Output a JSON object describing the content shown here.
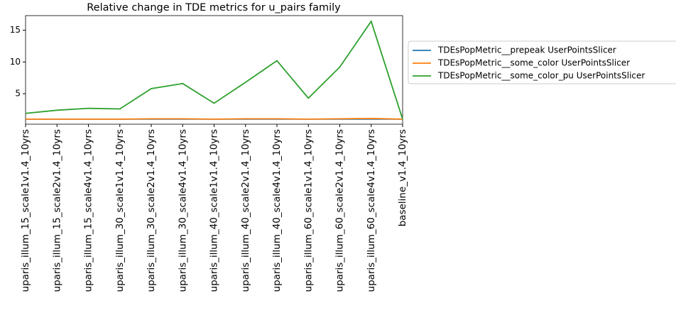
{
  "chart_data": {
    "type": "line",
    "title": "Relative change in TDE metrics for u_pairs family",
    "categories": [
      "uparis_illum_15_scale1v1.4_10yrs",
      "uparis_illum_15_scale2v1.4_10yrs",
      "uparis_illum_15_scale4v1.4_10yrs",
      "uparis_illum_30_scale1v1.4_10yrs",
      "uparis_illum_30_scale2v1.4_10yrs",
      "uparis_illum_30_scale4v1.4_10yrs",
      "uparis_illum_40_scale1v1.4_10yrs",
      "uparis_illum_40_scale2v1.4_10yrs",
      "uparis_illum_40_scale4v1.4_10yrs",
      "uparis_illum_60_scale1v1.4_10yrs",
      "uparis_illum_60_scale2v1.4_10yrs",
      "uparis_illum_60_scale4v1.4_10yrs",
      "baseline_v1.4_10yrs"
    ],
    "series": [
      {
        "name": "TDEsPopMetric__prepeak  UserPointsSlicer",
        "color": "#1f77b4",
        "values": [
          1.0,
          1.0,
          1.0,
          1.0,
          1.0,
          1.0,
          1.0,
          1.0,
          1.0,
          1.0,
          1.0,
          1.0,
          1.0
        ]
      },
      {
        "name": "TDEsPopMetric__some_color  UserPointsSlicer",
        "color": "#ff7f0e",
        "values": [
          1.0,
          1.0,
          1.0,
          1.0,
          1.05,
          1.05,
          1.0,
          1.05,
          1.05,
          1.0,
          1.05,
          1.1,
          1.0
        ]
      },
      {
        "name": "TDEsPopMetric__some_color_pu  UserPointsSlicer",
        "color": "#2ca02c",
        "values": [
          1.9,
          2.4,
          2.7,
          2.6,
          5.8,
          6.6,
          3.5,
          6.8,
          10.2,
          4.3,
          9.2,
          16.4,
          1.0
        ]
      }
    ],
    "ylim": [
      0.2,
      17.3
    ],
    "yticks": [
      5,
      10,
      15
    ],
    "legend": "outside right"
  }
}
